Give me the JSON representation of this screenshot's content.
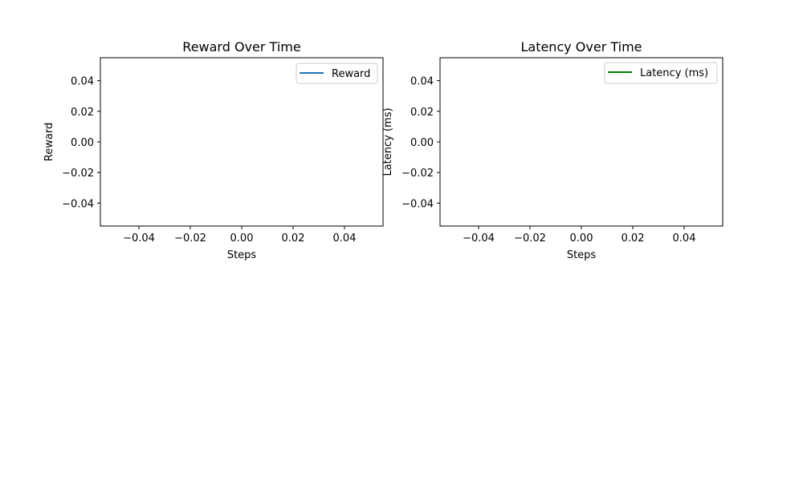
{
  "chart_data": [
    {
      "type": "line",
      "title": "Reward Over Time",
      "xlabel": "Steps",
      "ylabel": "Reward",
      "xlim": [
        -0.055,
        0.055
      ],
      "ylim": [
        -0.055,
        0.055
      ],
      "xticks": [
        -0.04,
        -0.02,
        0.0,
        0.02,
        0.04
      ],
      "yticks": [
        -0.04,
        -0.02,
        0.0,
        0.02,
        0.04
      ],
      "xtick_labels": [
        "−0.04",
        "−0.02",
        "0.00",
        "0.02",
        "0.04"
      ],
      "ytick_labels": [
        "−0.04",
        "−0.02",
        "0.00",
        "0.02",
        "0.04"
      ],
      "grid": false,
      "legend_position": "top-right",
      "series": [
        {
          "name": "Reward",
          "color": "#1f77b4",
          "x": [],
          "y": []
        }
      ]
    },
    {
      "type": "line",
      "title": "Latency Over Time",
      "xlabel": "Steps",
      "ylabel": "Latency (ms)",
      "xlim": [
        -0.055,
        0.055
      ],
      "ylim": [
        -0.055,
        0.055
      ],
      "xticks": [
        -0.04,
        -0.02,
        0.0,
        0.02,
        0.04
      ],
      "yticks": [
        -0.04,
        -0.02,
        0.0,
        0.02,
        0.04
      ],
      "xtick_labels": [
        "−0.04",
        "−0.02",
        "0.00",
        "0.02",
        "0.04"
      ],
      "ytick_labels": [
        "−0.04",
        "−0.02",
        "0.00",
        "0.02",
        "0.04"
      ],
      "grid": false,
      "legend_position": "top-right",
      "series": [
        {
          "name": "Latency (ms)",
          "color": "#008000",
          "x": [],
          "y": []
        }
      ]
    }
  ]
}
